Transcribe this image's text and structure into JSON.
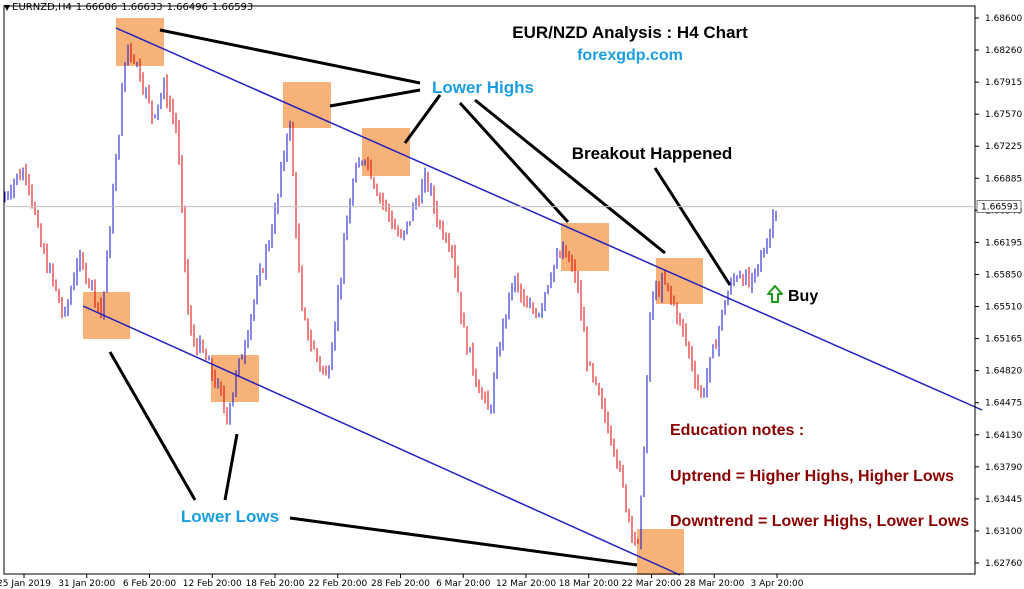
{
  "header": {
    "symbol": "EURNZD,H4",
    "ohlc": [
      "1.66606",
      "1.66633",
      "1.66496",
      "1.66593"
    ]
  },
  "annotations": {
    "title": "EUR/NZD Analysis : H4 Chart",
    "site": "forexgdp.com",
    "lower_highs": "Lower Highs",
    "lower_lows": "Lower Lows",
    "breakout": "Breakout Happened",
    "buy": "Buy",
    "notes_title": "Education notes :",
    "note_uptrend": "Uptrend = Higher Highs, Higher Lows",
    "note_downtrend": "Downtrend = Lower Highs, Lower Lows"
  },
  "colors": {
    "bull": "#1010d0",
    "bear": "#e00000",
    "trendline": "#2020c0",
    "box": "#f4a460",
    "blue_label": "#1a9ee0",
    "note_text": "#8b0000",
    "buy_arrow": "#1a9a1a"
  },
  "chart_data": {
    "type": "candlestick",
    "title": "EUR/NZD Analysis : H4 Chart",
    "ylim": [
      1.6255,
      1.688
    ],
    "y_ticks": [
      "1.68600",
      "1.68260",
      "1.67915",
      "1.67570",
      "1.67225",
      "1.66885",
      "1.66540",
      "1.66195",
      "1.65850",
      "1.65510",
      "1.65165",
      "1.64820",
      "1.64475",
      "1.64130",
      "1.63790",
      "1.63445",
      "1.63100",
      "1.62760"
    ],
    "current_price": "1.66593",
    "x_ticks": [
      "25 Jan 2019",
      "31 Jan 20:00",
      "6 Feb 20:00",
      "12 Feb 20:00",
      "18 Feb 20:00",
      "22 Feb 20:00",
      "28 Feb 20:00",
      "6 Mar 20:00",
      "12 Mar 20:00",
      "18 Mar 20:00",
      "22 Mar 20:00",
      "28 Mar 20:00",
      "3 Apr 20:00"
    ],
    "price_path": [
      1.6665,
      1.669,
      1.67,
      1.662,
      1.658,
      1.6535,
      1.66,
      1.658,
      1.654,
      1.669,
      1.684,
      1.681,
      1.676,
      1.679,
      1.6745,
      1.652,
      1.65,
      1.647,
      1.643,
      1.6485,
      1.6545,
      1.66,
      1.666,
      1.676,
      1.654,
      1.65,
      1.647,
      1.657,
      1.668,
      1.672,
      1.668,
      1.665,
      1.662,
      1.666,
      1.669,
      1.664,
      1.662,
      1.652,
      1.647,
      1.643,
      1.652,
      1.658,
      1.6545,
      1.6545,
      1.659,
      1.661,
      1.658,
      1.648,
      1.644,
      1.64,
      1.633,
      1.628,
      1.656,
      1.6575,
      1.6545,
      1.65,
      1.645,
      1.65,
      1.656,
      1.659,
      1.657,
      1.661,
      1.666
    ]
  }
}
